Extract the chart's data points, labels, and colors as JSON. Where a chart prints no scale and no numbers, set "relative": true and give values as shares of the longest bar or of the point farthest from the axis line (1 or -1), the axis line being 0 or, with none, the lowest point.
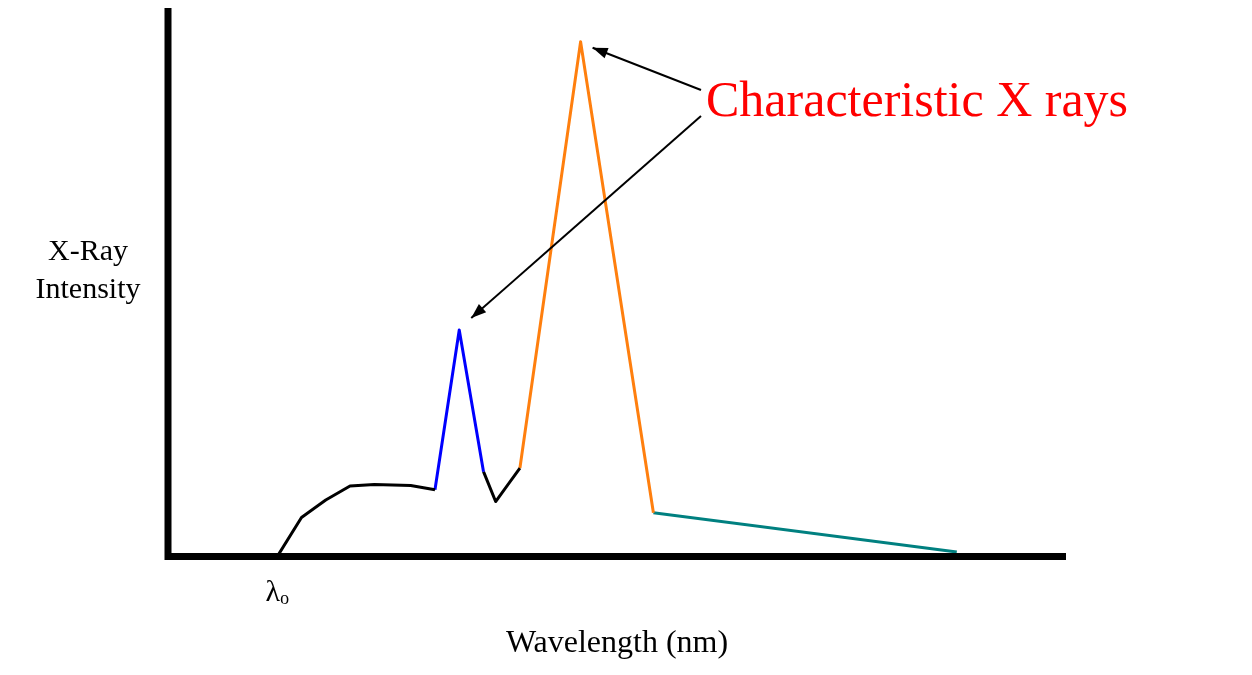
{
  "chart_data": {
    "type": "line",
    "relative": true,
    "xlabel": "Wavelength (nm)",
    "ylabel": "X-Ray Intensity",
    "annotations": [
      "Characteristic X rays",
      "λₒ"
    ],
    "grid": false,
    "legend": false,
    "marker": "none",
    "line_style": "solid",
    "categories": [
      null,
      null,
      null,
      null,
      null,
      null,
      null,
      null,
      null,
      null,
      null,
      null,
      null,
      null,
      null,
      null,
      null,
      null,
      null,
      null,
      null,
      null,
      null,
      null,
      null,
      null,
      null,
      null,
      null,
      null,
      null,
      null,
      null,
      null,
      null,
      null,
      null,
      null,
      null,
      null,
      null,
      null,
      null,
      null,
      null,
      null,
      null,
      null,
      null,
      null,
      null,
      null,
      null,
      null,
      null,
      null,
      null,
      null,
      null,
      null,
      null,
      null,
      null,
      null,
      null,
      null,
      null,
      null,
      null,
      null,
      null,
      null,
      null,
      null,
      null
    ],
    "series": [
      {
        "color": "#000000",
        "values": [
          null,
          null,
          null,
          null,
          null,
          null,
          null,
          null,
          null,
          0,
          null,
          0.076,
          null,
          0.11,
          null,
          0.137,
          null,
          0.14,
          null,
          null,
          0.138,
          null,
          0.13,
          null,
          null,
          null,
          null,
          null,
          null,
          null,
          null,
          null,
          null,
          null,
          null,
          null,
          null,
          null,
          null,
          null,
          null,
          null,
          null,
          null,
          null,
          null,
          null,
          null,
          null,
          null,
          null,
          null,
          null,
          null,
          null,
          null,
          null,
          null,
          null,
          null,
          null,
          null,
          null,
          null,
          null,
          null,
          null,
          null,
          null,
          null,
          null,
          null,
          null,
          null,
          null
        ]
      },
      {
        "color": "#0000ff",
        "values": [
          null,
          null,
          null,
          null,
          null,
          null,
          null,
          null,
          null,
          null,
          null,
          null,
          null,
          null,
          null,
          null,
          null,
          null,
          null,
          null,
          null,
          null,
          0.13,
          null,
          0.44,
          null,
          0.165,
          null,
          null,
          null,
          null,
          null,
          null,
          null,
          null,
          null,
          null,
          null,
          null,
          null,
          null,
          null,
          null,
          null,
          null,
          null,
          null,
          null,
          null,
          null,
          null,
          null,
          null,
          null,
          null,
          null,
          null,
          null,
          null,
          null,
          null,
          null,
          null,
          null,
          null,
          null,
          null,
          null,
          null,
          null,
          null,
          null,
          null,
          null,
          null
        ]
      },
      {
        "color": "#000000",
        "values": [
          null,
          null,
          null,
          null,
          null,
          null,
          null,
          null,
          null,
          null,
          null,
          null,
          null,
          null,
          null,
          null,
          null,
          null,
          null,
          null,
          null,
          null,
          null,
          null,
          null,
          null,
          0.165,
          0.107,
          null,
          0.172,
          null,
          null,
          null,
          null,
          null,
          null,
          null,
          null,
          null,
          null,
          null,
          null,
          null,
          null,
          null,
          null,
          null,
          null,
          null,
          null,
          null,
          null,
          null,
          null,
          null,
          null,
          null,
          null,
          null,
          null,
          null,
          null,
          null,
          null,
          null,
          null,
          null,
          null,
          null,
          null,
          null,
          null,
          null,
          null,
          null
        ]
      },
      {
        "color": "#ff7f0e",
        "values": [
          null,
          null,
          null,
          null,
          null,
          null,
          null,
          null,
          null,
          null,
          null,
          null,
          null,
          null,
          null,
          null,
          null,
          null,
          null,
          null,
          null,
          null,
          null,
          null,
          null,
          null,
          null,
          null,
          null,
          0.172,
          null,
          null,
          null,
          null,
          1,
          null,
          null,
          null,
          null,
          null,
          0.085,
          null,
          null,
          null,
          null,
          null,
          null,
          null,
          null,
          null,
          null,
          null,
          null,
          null,
          null,
          null,
          null,
          null,
          null,
          null,
          null,
          null,
          null,
          null,
          null,
          null,
          null,
          null,
          null,
          null,
          null,
          null,
          null,
          null,
          null
        ]
      },
      {
        "color": "#008080",
        "values": [
          null,
          null,
          null,
          null,
          null,
          null,
          null,
          null,
          null,
          null,
          null,
          null,
          null,
          null,
          null,
          null,
          null,
          null,
          null,
          null,
          null,
          null,
          null,
          null,
          null,
          null,
          null,
          null,
          null,
          null,
          null,
          null,
          null,
          null,
          null,
          null,
          null,
          null,
          null,
          null,
          0.085,
          null,
          null,
          null,
          null,
          null,
          null,
          null,
          null,
          null,
          null,
          null,
          null,
          null,
          null,
          null,
          null,
          null,
          null,
          null,
          null,
          null,
          null,
          null,
          null,
          0.009,
          null,
          null,
          null,
          null,
          null,
          null,
          null,
          null,
          null
        ]
      }
    ]
  }
}
